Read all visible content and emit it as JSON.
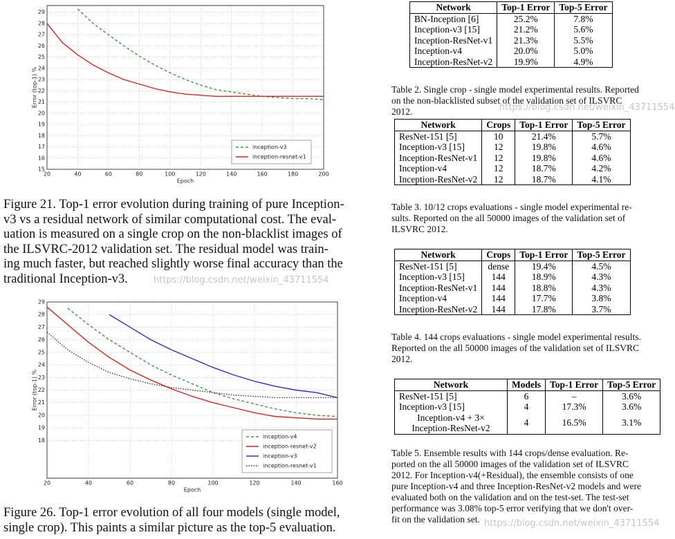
{
  "chart_data": [
    {
      "type": "line",
      "x_label": "Epoch",
      "y_label": "Error (top-1) %",
      "x": [
        20,
        30,
        40,
        50,
        60,
        70,
        80,
        90,
        100,
        110,
        120,
        130,
        140,
        150,
        160,
        170,
        180,
        190,
        200
      ],
      "series": [
        {
          "name": "inception-v3",
          "color": "#3a9a3a",
          "dash": "dashed",
          "values": [
            null,
            null,
            29.3,
            28.0,
            27.0,
            26.0,
            25.1,
            24.3,
            23.6,
            23.0,
            22.5,
            22.1,
            21.9,
            21.7,
            21.5,
            21.4,
            21.3,
            21.3,
            21.2
          ]
        },
        {
          "name": "inception-resnet-v1",
          "color": "#e8201c",
          "dash": "solid",
          "values": [
            28.0,
            26.3,
            25.2,
            24.3,
            23.6,
            23.0,
            22.6,
            22.2,
            21.9,
            21.7,
            21.6,
            21.5,
            21.5,
            21.5,
            21.5,
            21.5,
            21.5,
            21.5,
            21.5
          ]
        }
      ],
      "xlim": [
        20,
        200
      ],
      "xticks": [
        20,
        40,
        60,
        80,
        100,
        120,
        140,
        160,
        180,
        200
      ],
      "ylim": [
        15,
        29.6
      ],
      "yticks": [
        15,
        16,
        17,
        18,
        19,
        20,
        21,
        22,
        23,
        24,
        25,
        26,
        27,
        28,
        29
      ],
      "grid": true,
      "legend": "lower right"
    },
    {
      "type": "line",
      "x_label": "Epoch",
      "y_label": "Error (top-1) %",
      "x": [
        20,
        30,
        40,
        50,
        60,
        70,
        80,
        90,
        100,
        110,
        120,
        130,
        140,
        150,
        160
      ],
      "series": [
        {
          "name": "inception-v4",
          "color": "#3a9a3a",
          "dash": "dashed",
          "values": [
            null,
            28.5,
            27.2,
            26.0,
            25.0,
            24.0,
            23.2,
            22.5,
            21.8,
            21.3,
            20.9,
            20.5,
            20.2,
            20.0,
            19.9
          ]
        },
        {
          "name": "inception-resnet-v2",
          "color": "#e8201c",
          "dash": "solid",
          "values": [
            28.6,
            27.2,
            25.8,
            24.6,
            23.6,
            22.8,
            22.1,
            21.5,
            21.0,
            20.6,
            20.2,
            19.9,
            19.8,
            19.7,
            19.7
          ]
        },
        {
          "name": "inception-v3",
          "color": "#2b2bd6",
          "dash": "solid",
          "values": [
            null,
            null,
            null,
            28.0,
            27.0,
            26.0,
            25.2,
            24.5,
            23.8,
            23.2,
            22.7,
            22.3,
            22.0,
            21.8,
            21.4
          ]
        },
        {
          "name": "inception-resnet-v1",
          "color": "#333333",
          "dash": "dotted",
          "values": [
            26.6,
            25.2,
            24.2,
            23.4,
            22.9,
            22.5,
            22.2,
            22.0,
            21.8,
            21.6,
            21.5,
            21.4,
            21.4,
            21.4,
            21.4
          ]
        }
      ],
      "xlim": [
        20,
        160
      ],
      "xticks": [
        20,
        40,
        60,
        80,
        100,
        120,
        140,
        160
      ],
      "ylim": [
        15,
        29
      ],
      "yticks": [
        18,
        19,
        20,
        21,
        22,
        23,
        24,
        25,
        26,
        27,
        28,
        29
      ],
      "grid": true,
      "legend": "lower right"
    }
  ],
  "figure_captions": [
    [
      "Figure 21. Top-1 error evolution during training of pure Inception-",
      "v3 vs a residual network of similar computational cost. The eval-",
      "uation is measured on a single crop on the non-blacklist images of",
      "the ILSVRC-2012 validation set. The residual model was train-",
      "ing much faster, but reached slightly worse final accuracy than the",
      "traditional Inception-v3."
    ],
    [
      "Figure 26. Top-1 error evolution of all four models (single model,",
      "single crop). This paints a similar picture as the top-5 evaluation."
    ]
  ],
  "tables": [
    {
      "header": [
        "Network",
        "Top-1 Error",
        "Top-5 Error"
      ],
      "rows": [
        [
          "BN-Inception [6]",
          "25.2%",
          "7.8%"
        ],
        [
          "Inception-v3 [15]",
          "21.2%",
          "5.6%"
        ],
        [
          "Inception-ResNet-v1",
          "21.3%",
          "5.5%"
        ],
        [
          "Inception-v4",
          "20.0%",
          "5.0%"
        ],
        [
          "Inception-ResNet-v2",
          "19.9%",
          "4.9%"
        ]
      ],
      "caption": [
        "Table 2. Single crop - single model experimental results. Reported",
        "on the non-blacklisted subset of the validation set of ILSVRC",
        "2012."
      ]
    },
    {
      "header": [
        "Network",
        "Crops",
        "Top-1 Error",
        "Top-5 Error"
      ],
      "rows": [
        [
          "ResNet-151 [5]",
          "10",
          "21.4%",
          "5.7%"
        ],
        [
          "Inception-v3 [15]",
          "12",
          "19.8%",
          "4.6%"
        ],
        [
          "Inception-ResNet-v1",
          "12",
          "19.8%",
          "4.6%"
        ],
        [
          "Inception-v4",
          "12",
          "18.7%",
          "4.2%"
        ],
        [
          "Inception-ResNet-v2",
          "12",
          "18.7%",
          "4.1%"
        ]
      ],
      "caption": [
        "Table 3. 10/12 crops evaluations - single model experimental re-",
        "sults. Reported on the all 50000 images of the validation set of",
        "ILSVRC 2012."
      ]
    },
    {
      "header": [
        "Network",
        "Crops",
        "Top-1 Error",
        "Top-5 Error"
      ],
      "rows": [
        [
          "ResNet-151 [5]",
          "dense",
          "19.4%",
          "4.5%"
        ],
        [
          "Inception-v3 [15]",
          "144",
          "18.9%",
          "4.3%"
        ],
        [
          "Inception-ResNet-v1",
          "144",
          "18.8%",
          "4.3%"
        ],
        [
          "Inception-v4",
          "144",
          "17.7%",
          "3.8%"
        ],
        [
          "Inception-ResNet-v2",
          "144",
          "17.8%",
          "3.7%"
        ]
      ],
      "caption": [
        "Table 4. 144 crops evaluations - single model experimental results.",
        "Reported on the all 50000 images of the validation set of ILSVRC",
        "2012."
      ]
    },
    {
      "header": [
        "Network",
        "Models",
        "Top-1 Error",
        "Top-5 Error"
      ],
      "rows": [
        [
          "ResNet-151 [5]",
          "6",
          "–",
          "3.6%"
        ],
        [
          "Inception-v3 [15]",
          "4",
          "17.3%",
          "3.6%"
        ],
        [
          "Inception-v4 + 3× Inception-ResNet-v2",
          "4",
          "16.5%",
          "3.1%"
        ]
      ],
      "caption": [
        "Table 5. Ensemble results with 144 crops/dense evaluation. Re-",
        "ported on the all 50000 images of the validation set of ILSVRC",
        "2012. For Inception-v4(+Residual), the ensemble consists of one",
        "pure Inception-v4 and three Inception-ResNet-v2 models and were",
        "evaluated both on the validation and on the test-set. The test-set",
        "performance was 3.08% top-5 error verifying that we don't over-",
        "fit on the validation set."
      ]
    }
  ],
  "watermarks": [
    "https://blog.csdn.net/weixin_43711554",
    "https://blog.csdn.net/weixin_43711554",
    "https://blog.csdn.net/weixin_43711554"
  ]
}
